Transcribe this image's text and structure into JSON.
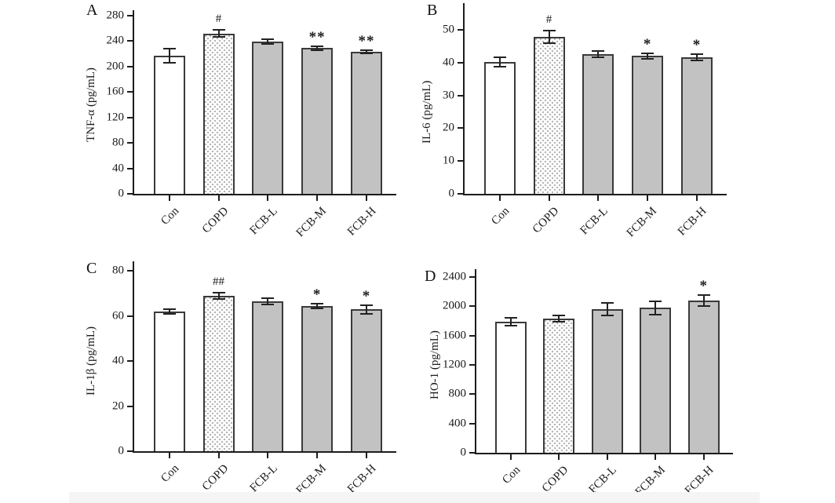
{
  "figure": {
    "colors": {
      "axis": "#1c1c1c",
      "bar_outline": "#3a3a3a",
      "bar_fill_gray": "#c2c2c2",
      "bar_fill_white": "#ffffff",
      "dot_pattern": "#b3b3b3",
      "error_bar": "#222222"
    }
  },
  "chart_data": [
    {
      "type": "bar",
      "panel": "A",
      "title": "",
      "xlabel": "",
      "ylabel": "TNF-α (pg/mL)",
      "ylim": [
        0,
        280
      ],
      "yticks": [
        0,
        40,
        80,
        120,
        160,
        200,
        240,
        280
      ],
      "categories": [
        "Con",
        "COPD",
        "FCB-L",
        "FCB-M",
        "FCB-H"
      ],
      "values": [
        217,
        252,
        239,
        229,
        223
      ],
      "errors": [
        12,
        7,
        5,
        4,
        4
      ],
      "annotations": [
        "",
        "#",
        "",
        "**",
        "**"
      ],
      "bar_styles": [
        "open",
        "dotted",
        "filled",
        "filled",
        "filled"
      ],
      "grid": false,
      "legend": null
    },
    {
      "type": "bar",
      "panel": "B",
      "title": "",
      "xlabel": "",
      "ylabel": "IL-6 (pg/mL)",
      "ylim": [
        0,
        50
      ],
      "yticks": [
        0,
        10,
        20,
        30,
        40,
        50
      ],
      "categories": [
        "Con",
        "COPD",
        "FCB-L",
        "FCB-M",
        "FCB-H"
      ],
      "values": [
        40.2,
        47.8,
        42.7,
        42.0,
        41.6
      ],
      "errors": [
        1.6,
        2.2,
        1.2,
        1.1,
        1.2
      ],
      "annotations": [
        "",
        "#",
        "",
        "*",
        "*"
      ],
      "bar_styles": [
        "open",
        "dotted",
        "filled",
        "filled",
        "filled"
      ],
      "grid": false,
      "legend": null
    },
    {
      "type": "bar",
      "panel": "C",
      "title": "",
      "xlabel": "",
      "ylabel": "IL-1β (pg/mL)",
      "ylim": [
        0,
        80
      ],
      "yticks": [
        0,
        20,
        40,
        60,
        80
      ],
      "categories": [
        "Con",
        "COPD",
        "FCB-L",
        "FCB-M",
        "FCB-H"
      ],
      "values": [
        62,
        69,
        66.5,
        64.4,
        62.8
      ],
      "errors": [
        1.3,
        1.7,
        1.7,
        1.3,
        2.4
      ],
      "annotations": [
        "",
        "##",
        "",
        "*",
        "*"
      ],
      "bar_styles": [
        "open",
        "dotted",
        "filled",
        "filled",
        "filled"
      ],
      "grid": false,
      "legend": null
    },
    {
      "type": "bar",
      "panel": "D",
      "title": "",
      "xlabel": "",
      "ylabel": "HO-1 (pg/mL)",
      "ylim": [
        0,
        2400
      ],
      "yticks": [
        0,
        400,
        800,
        1200,
        1600,
        2000,
        2400
      ],
      "categories": [
        "Con",
        "COPD",
        "FCB-L",
        "FCB-M",
        "FCB-H"
      ],
      "values": [
        1790,
        1830,
        1960,
        1980,
        2080
      ],
      "errors": [
        60,
        55,
        95,
        100,
        85
      ],
      "annotations": [
        "",
        "",
        "",
        "",
        "*"
      ],
      "bar_styles": [
        "open",
        "dotted",
        "filled",
        "filled",
        "filled"
      ],
      "grid": false,
      "legend": null
    }
  ]
}
